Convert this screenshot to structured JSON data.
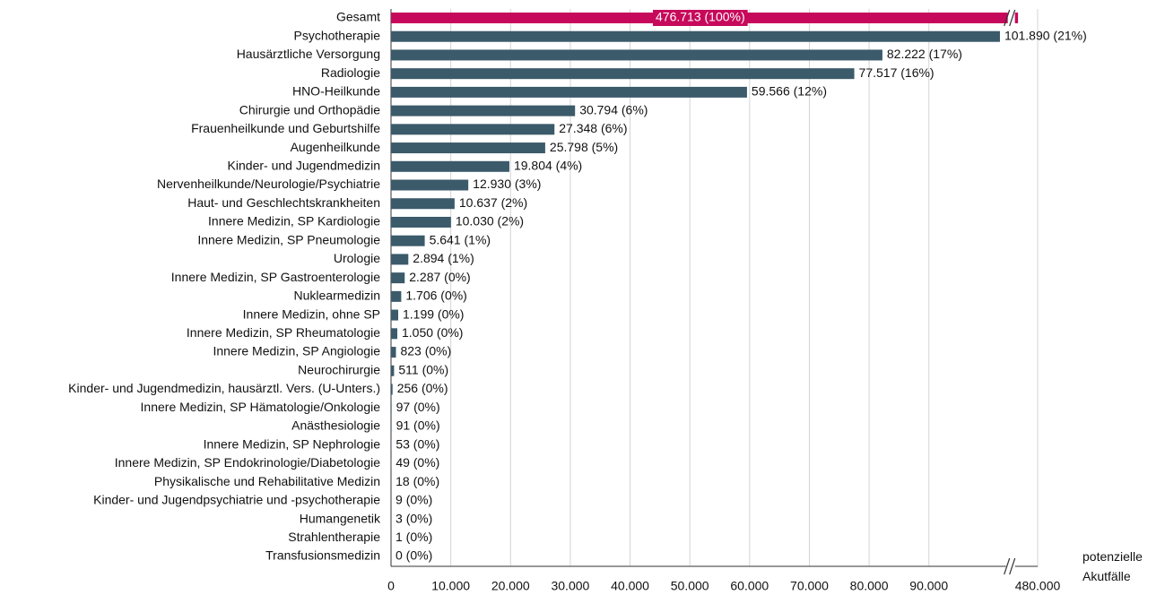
{
  "chart_data": {
    "type": "hbar",
    "x_label": "potenzielle Akutfälle",
    "categories": [
      "Gesamt",
      "Psychotherapie",
      "Hausärztliche Versorgung",
      "Radiologie",
      "HNO-Heilkunde",
      "Chirurgie und Orthopädie",
      "Frauenheilkunde und Geburtshilfe",
      "Augenheilkunde",
      "Kinder- und Jugendmedizin",
      "Nervenheilkunde/Neurologie/Psychiatrie",
      "Haut- und Geschlechtskrankheiten",
      "Innere Medizin, SP Kardiologie",
      "Innere Medizin, SP Pneumologie",
      "Urologie",
      "Innere Medizin, SP Gastroenterologie",
      "Nuklearmedizin",
      "Innere Medizin, ohne SP",
      "Innere Medizin, SP Rheumatologie",
      "Innere Medizin, SP Angiologie",
      "Neurochirurgie",
      "Kinder- und Jugendmedizin, hausärztl. Vers. (U-Unters.)",
      "Innere Medizin, SP Hämatologie/Onkologie",
      "Anästhesiologie",
      "Innere Medizin, SP Nephrologie",
      "Innere Medizin, SP Endokrinologie/Diabetologie",
      "Physikalische und Rehabilitative Medizin",
      "Kinder- und Jugendpsychiatrie und -psychotherapie",
      "Humangenetik",
      "Strahlentherapie",
      "Transfusionsmedizin"
    ],
    "values": [
      476713,
      101890,
      82222,
      77517,
      59566,
      30794,
      27348,
      25798,
      19804,
      12930,
      10637,
      10030,
      5641,
      2894,
      2287,
      1706,
      1199,
      1050,
      823,
      511,
      256,
      97,
      91,
      53,
      49,
      18,
      9,
      3,
      1,
      0
    ],
    "value_labels": [
      "476.713 (100%)",
      "101.890 (21%)",
      "82.222 (17%)",
      "77.517 (16%)",
      "59.566 (12%)",
      "30.794 (6%)",
      "27.348 (6%)",
      "25.798 (5%)",
      "19.804 (4%)",
      "12.930 (3%)",
      "10.637 (2%)",
      "10.030 (2%)",
      "5.641 (1%)",
      "2.894 (1%)",
      "2.287 (0%)",
      "1.706 (0%)",
      "1.199 (0%)",
      "1.050 (0%)",
      "823 (0%)",
      "511 (0%)",
      "256 (0%)",
      "97 (0%)",
      "91 (0%)",
      "53 (0%)",
      "49 (0%)",
      "18 (0%)",
      "9 (0%)",
      "3 (0%)",
      "1 (0%)",
      "0 (0%)"
    ],
    "colors": [
      "#c7095b",
      "#3b5a6a",
      "#3b5a6a",
      "#3b5a6a",
      "#3b5a6a",
      "#3b5a6a",
      "#3b5a6a",
      "#3b5a6a",
      "#3b5a6a",
      "#3b5a6a",
      "#3b5a6a",
      "#3b5a6a",
      "#3b5a6a",
      "#3b5a6a",
      "#3b5a6a",
      "#3b5a6a",
      "#3b5a6a",
      "#3b5a6a",
      "#3b5a6a",
      "#3b5a6a",
      "#3b5a6a",
      "#3b5a6a",
      "#3b5a6a",
      "#3b5a6a",
      "#3b5a6a",
      "#3b5a6a",
      "#3b5a6a",
      "#3b5a6a",
      "#3b5a6a",
      "#3b5a6a"
    ],
    "xlim": [
      0,
      480000
    ],
    "xbreak": [
      103500,
      475300
    ],
    "xticks": [
      0,
      {
        "value": 10000,
        "label": "10.000"
      },
      {
        "value": 20000,
        "label": "20.000"
      },
      {
        "value": 30000,
        "label": "30.000"
      },
      {
        "value": 40000,
        "label": "40.000"
      },
      {
        "value": 50000,
        "label": "50.000"
      },
      {
        "value": 60000,
        "label": "60.000"
      },
      {
        "value": 70000,
        "label": "70.000"
      },
      {
        "value": 80000,
        "label": "80.000"
      },
      {
        "value": 90000,
        "label": "90.000"
      },
      {
        "value": 480000,
        "label": "480.000"
      }
    ],
    "grid": true
  }
}
